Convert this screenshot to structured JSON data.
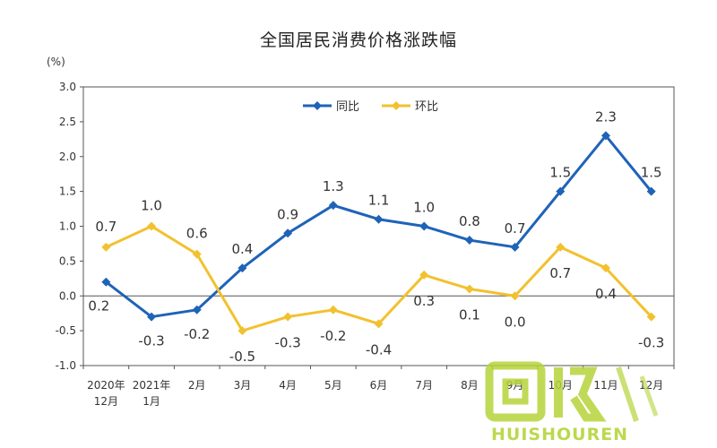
{
  "title": "全国居民消费价格涨跌幅",
  "unit": "(%)",
  "watermark_text": "HUISHOUREN",
  "colors": {
    "yoy": "#1f63b8",
    "mom": "#f2c12e",
    "axis": "#333333",
    "watermark": "#b5d43a"
  },
  "chart_data": {
    "type": "line",
    "title": "全国居民消费价格涨跌幅",
    "ylabel": "(%)",
    "ylim": [
      -1.0,
      3.0
    ],
    "yticks": [
      "3.0",
      "2.5",
      "2.0",
      "1.5",
      "1.0",
      "0.5",
      "0.0",
      "-0.5",
      "-1.0"
    ],
    "categories": [
      [
        "2020年",
        "12月"
      ],
      [
        "2021年",
        "1月"
      ],
      [
        "2月"
      ],
      [
        "3月"
      ],
      [
        "4月"
      ],
      [
        "5月"
      ],
      [
        "6月"
      ],
      [
        "7月"
      ],
      [
        "8月"
      ],
      [
        "9月"
      ],
      [
        "10月"
      ],
      [
        "11月"
      ],
      [
        "12月"
      ]
    ],
    "legend_position": "top-center",
    "grid": false,
    "series": [
      {
        "name": "同比",
        "values": [
          0.2,
          -0.3,
          -0.2,
          0.4,
          0.9,
          1.3,
          1.1,
          1.0,
          0.8,
          0.7,
          1.5,
          2.3,
          1.5
        ],
        "labels": [
          "0.2",
          "-0.3",
          "-0.2",
          "0.4",
          "0.9",
          "1.3",
          "1.1",
          "1.0",
          "0.8",
          "0.7",
          "1.5",
          "2.3",
          "1.5"
        ]
      },
      {
        "name": "环比",
        "values": [
          0.7,
          1.0,
          0.6,
          -0.5,
          -0.3,
          -0.2,
          -0.4,
          0.3,
          0.1,
          0.0,
          0.7,
          0.4,
          -0.3
        ],
        "labels": [
          "0.7",
          "1.0",
          "0.6",
          "-0.5",
          "-0.3",
          "-0.2",
          "-0.4",
          "0.3",
          "0.1",
          "0.0",
          "0.7",
          "0.4",
          "-0.3"
        ]
      }
    ]
  }
}
